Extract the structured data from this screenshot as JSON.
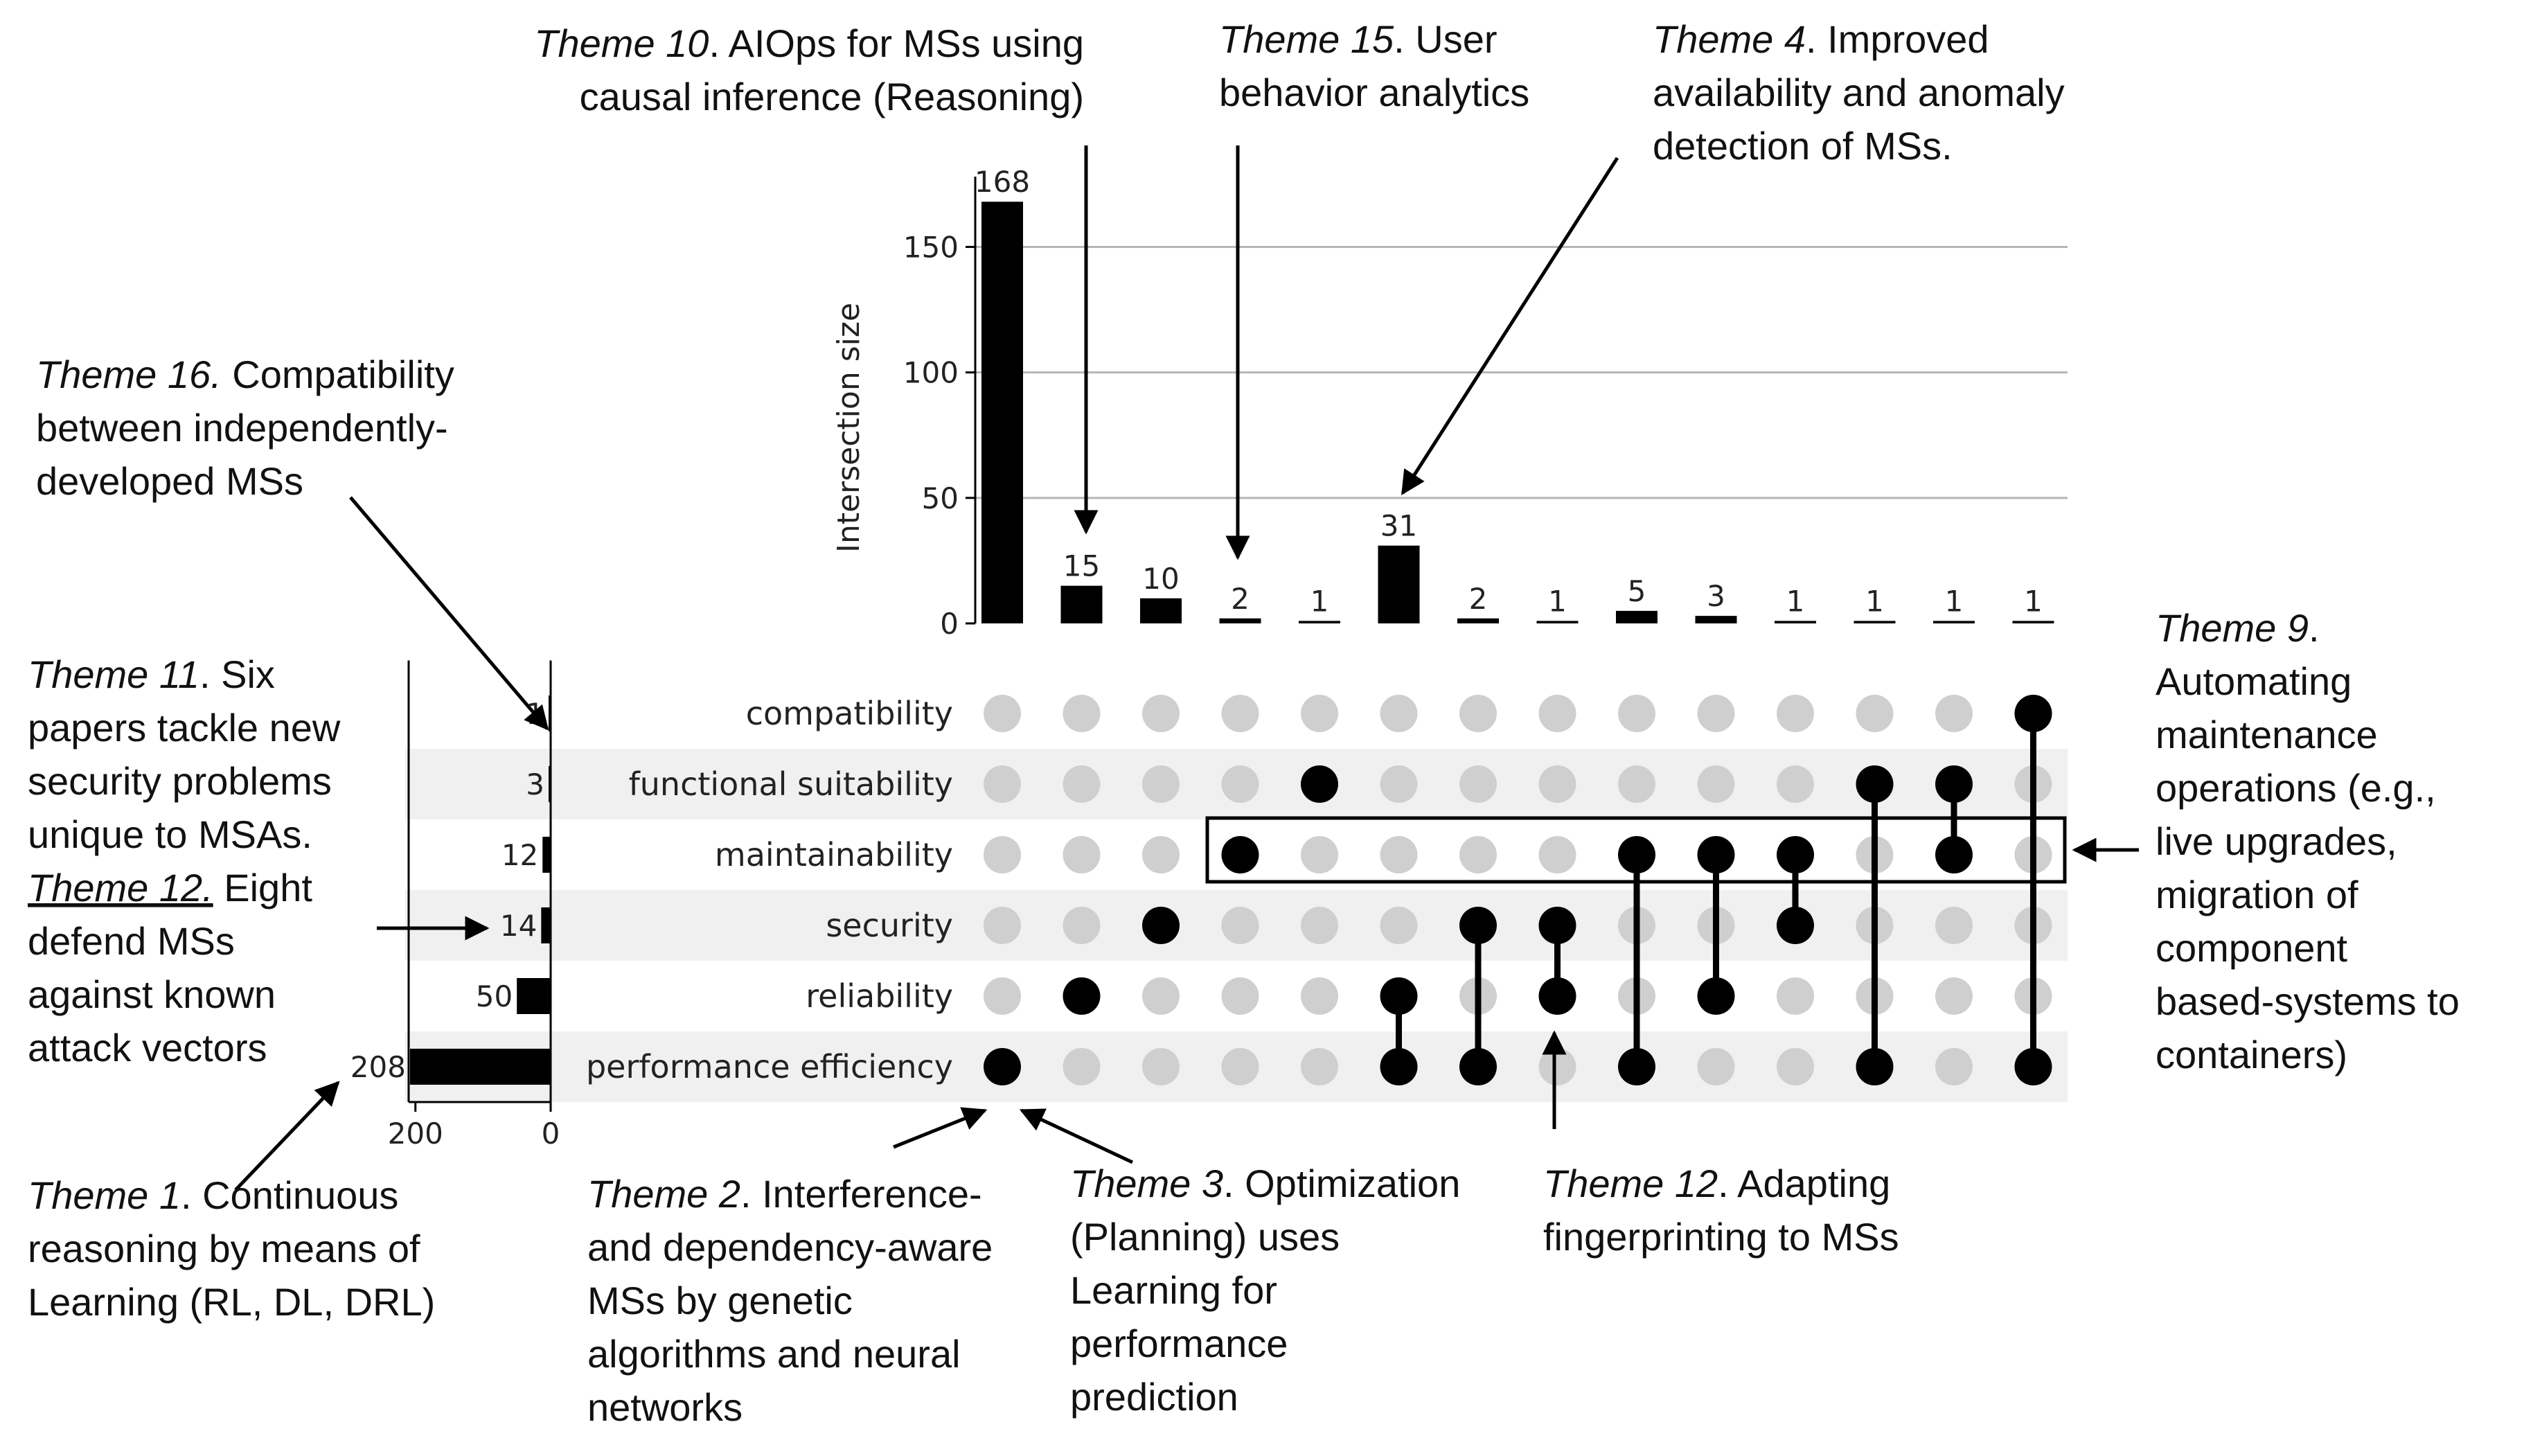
{
  "chart_data": {
    "type": "upset",
    "ylabel": "Intersection size",
    "yticks": [
      0,
      50,
      100,
      150
    ],
    "ylim": [
      0,
      178
    ],
    "set_size_ticks": [
      200,
      0
    ],
    "set_size_max": 210,
    "sets": [
      {
        "name": "compatibility",
        "size": 1
      },
      {
        "name": "functional suitability",
        "size": 3
      },
      {
        "name": "maintainability",
        "size": 12
      },
      {
        "name": "security",
        "size": 14
      },
      {
        "name": "reliability",
        "size": 50
      },
      {
        "name": "performance efficiency",
        "size": 208
      }
    ],
    "intersections": [
      {
        "value": 168,
        "members": [
          "performance efficiency"
        ]
      },
      {
        "value": 15,
        "members": [
          "reliability"
        ]
      },
      {
        "value": 10,
        "members": [
          "security"
        ]
      },
      {
        "value": 2,
        "members": [
          "maintainability"
        ]
      },
      {
        "value": 1,
        "members": [
          "functional suitability"
        ]
      },
      {
        "value": 31,
        "members": [
          "reliability",
          "performance efficiency"
        ]
      },
      {
        "value": 2,
        "members": [
          "security",
          "performance efficiency"
        ]
      },
      {
        "value": 1,
        "members": [
          "security",
          "reliability"
        ]
      },
      {
        "value": 5,
        "members": [
          "maintainability",
          "performance efficiency"
        ]
      },
      {
        "value": 3,
        "members": [
          "maintainability",
          "reliability"
        ]
      },
      {
        "value": 1,
        "members": [
          "maintainability",
          "security"
        ]
      },
      {
        "value": 1,
        "members": [
          "functional suitability",
          "performance efficiency"
        ]
      },
      {
        "value": 1,
        "members": [
          "functional suitability",
          "maintainability"
        ]
      },
      {
        "value": 1,
        "members": [
          "compatibility",
          "performance efficiency"
        ]
      }
    ]
  },
  "annotations": {
    "theme10": {
      "theme": "Theme 10",
      "line1": ". AIOps for MSs using",
      "line2": "causal inference (Reasoning)"
    },
    "theme15": {
      "theme": "Theme 15",
      "line1": ". User",
      "line2": "behavior analytics"
    },
    "theme4": {
      "theme": "Theme 4",
      "line1": ". Improved",
      "line2": "availability and anomaly",
      "line3": "detection of MSs."
    },
    "theme16": {
      "theme": "Theme 16.",
      "line1": " Compatibility",
      "line2": "between independently-",
      "line3": "developed MSs"
    },
    "theme11": {
      "theme": "Theme 11",
      "line1": ". Six",
      "line2": "papers tackle new",
      "line3": "security problems",
      "line4": "unique to MSAs.",
      "theme12": "Theme 12.",
      "line5": " Eight",
      "line6": "defend MSs",
      "line7": "against known",
      "line8": "attack vectors"
    },
    "theme1": {
      "theme": "Theme 1",
      "line1": ". Continuous",
      "line2": "reasoning by means of",
      "line3": "Learning (RL, DL, DRL)"
    },
    "theme2": {
      "theme": "Theme 2",
      "line1": ". Interference-",
      "line2": "and dependency-aware",
      "line3": "MSs by genetic",
      "line4": "algorithms and neural",
      "line5": "networks"
    },
    "theme3": {
      "theme": "Theme 3",
      "line1": ". Optimization",
      "line2": "(Planning) uses",
      "line3": "Learning for",
      "line4": "performance",
      "line5": "prediction"
    },
    "theme12b": {
      "theme": "Theme 12",
      "line1": ". Adapting",
      "line2": "fingerprinting to MSs"
    },
    "theme9": {
      "theme": "Theme 9",
      "line1": ".",
      "line2": "Automating",
      "line3": "maintenance",
      "line4": "operations (e.g.,",
      "line5": "live upgrades,",
      "line6": "migration of",
      "line7": "component",
      "line8": "based-systems to",
      "line9": "containers)"
    }
  },
  "colors": {
    "bar": "#000000",
    "dot_active": "#000000",
    "dot_inactive": "#cfcfcf",
    "stripe": "#f0f0f0",
    "grid": "#b5b5b5"
  }
}
